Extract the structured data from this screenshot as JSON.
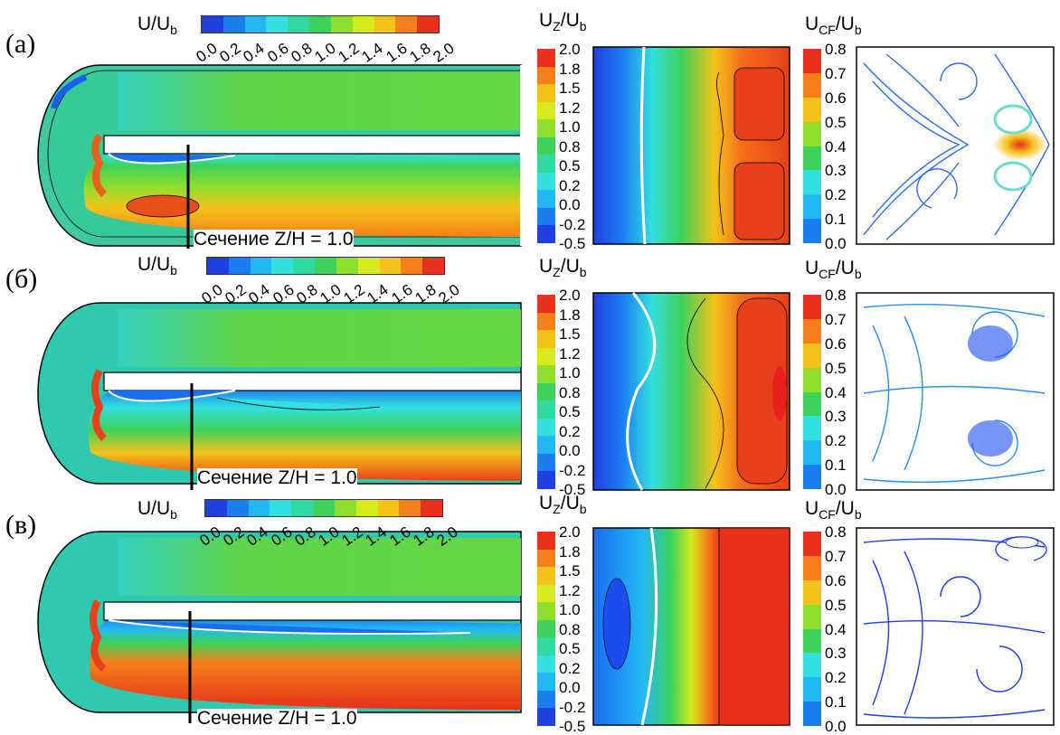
{
  "rows": [
    {
      "letter": "(a)",
      "section_label": "Сечение Z/H = 1.0"
    },
    {
      "letter": "(б)",
      "section_label": "Сечение Z/H = 1.0"
    },
    {
      "letter": "(в)",
      "section_label": "Сечение Z/H = 1.0"
    }
  ],
  "titles": {
    "u_main": "U/U",
    "u_main_sub": "b",
    "uz": "U",
    "uz_sub1": "Z",
    "uz_mid": "/U",
    "uz_sub2": "b",
    "ucf": "U",
    "ucf_sub1": "CF",
    "ucf_mid": "/U",
    "ucf_sub2": "b"
  },
  "horizontal_colorbar_ticks": [
    "0.0",
    "0.2",
    "0.4",
    "0.6",
    "0.8",
    "1.0",
    "1.2",
    "1.4",
    "1.6",
    "1.8",
    "2.0"
  ],
  "uz_colorbar_ticks": [
    "2.0",
    "1.8",
    "1.5",
    "1.2",
    "1.0",
    "0.8",
    "0.5",
    "0.2",
    "0.0",
    "-0.2",
    "-0.5"
  ],
  "ucf_colorbar_ticks": [
    "0.8",
    "0.7",
    "0.6",
    "0.5",
    "0.4",
    "0.3",
    "0.2",
    "0.1",
    "0.0"
  ],
  "colormap": [
    "#1f3fe0",
    "#1a7ef0",
    "#22b8f5",
    "#33e0e0",
    "#2fd9a0",
    "#3fd25a",
    "#8ede2c",
    "#d6ea1c",
    "#f5c21a",
    "#f5801a",
    "#e8301a"
  ]
}
